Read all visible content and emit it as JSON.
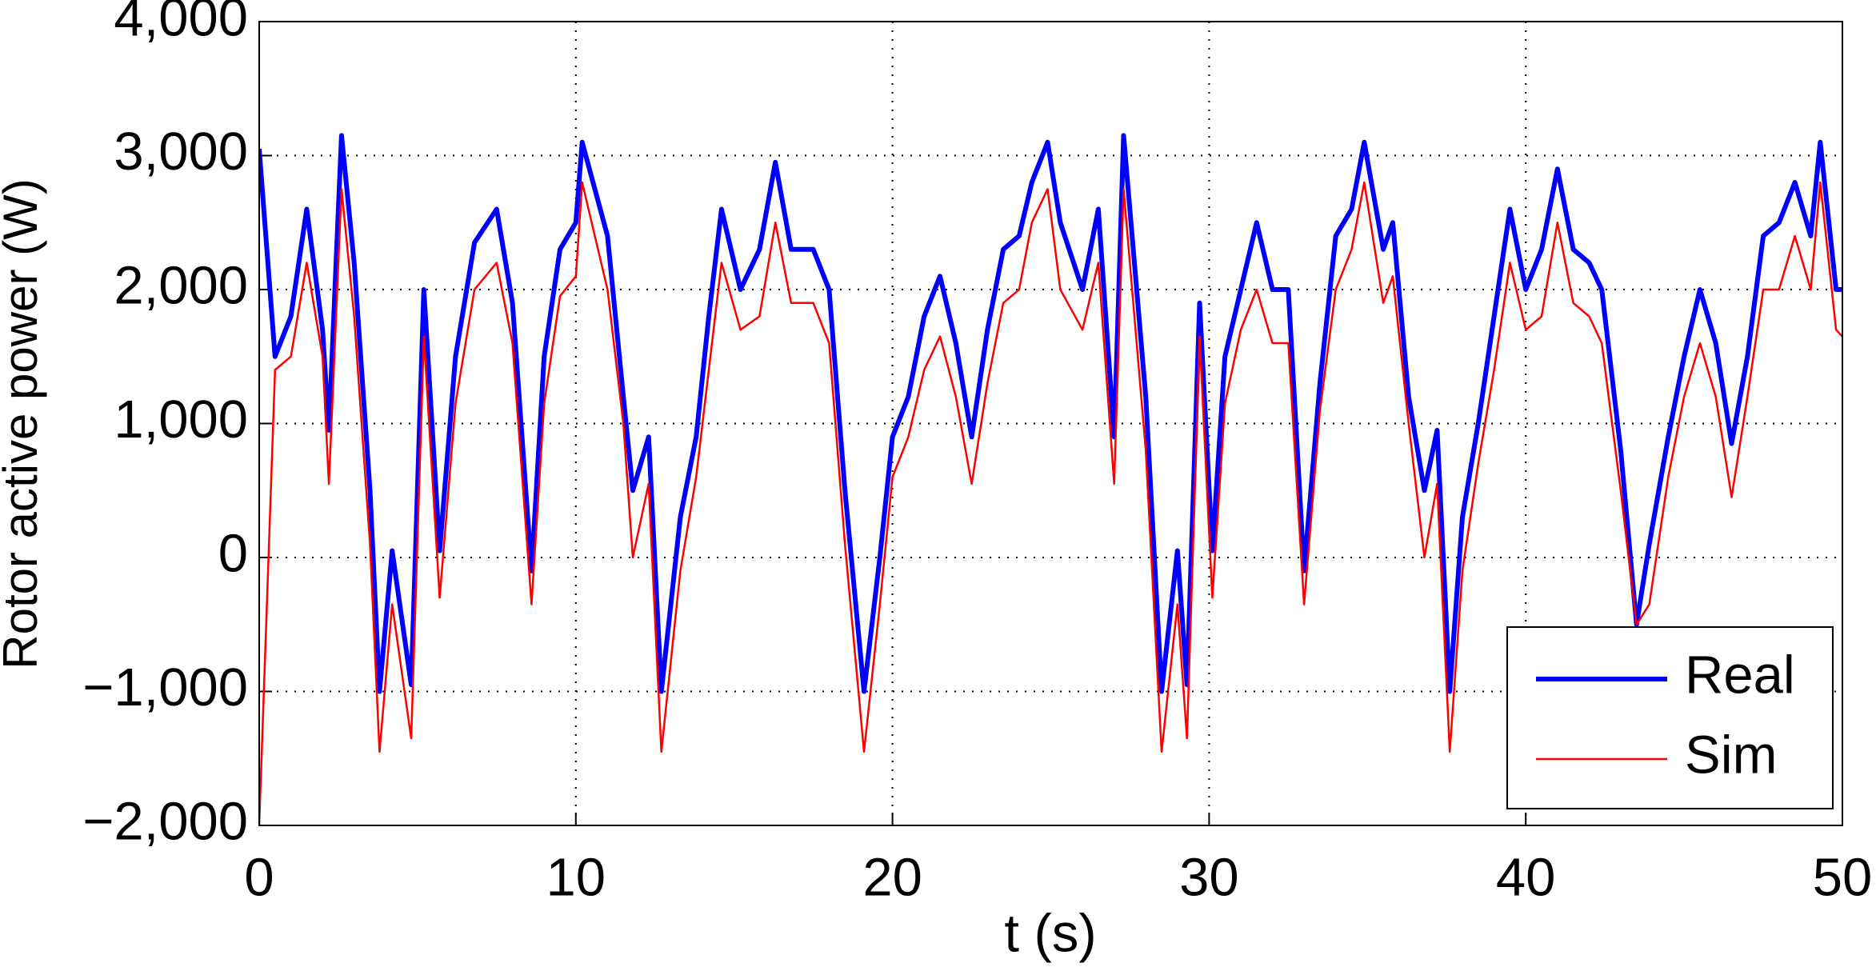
{
  "chart_data": {
    "type": "line",
    "x_label": "t (s)",
    "y_label": "Rotor active power (W)",
    "x": [
      0,
      0.5,
      1,
      1.5,
      2,
      2.2,
      2.6,
      3,
      3.5,
      3.8,
      4.2,
      4.8,
      5.2,
      5.7,
      6.2,
      6.8,
      7.5,
      8,
      8.6,
      9,
      9.5,
      10,
      10.2,
      11,
      11.5,
      11.8,
      12.3,
      12.7,
      13.3,
      13.8,
      14.2,
      14.6,
      15.2,
      15.8,
      16.3,
      16.8,
      17.5,
      18,
      18.5,
      19.1,
      19.6,
      20,
      20.5,
      21,
      21.5,
      22,
      22.5,
      23,
      23.5,
      24,
      24.4,
      24.9,
      25.3,
      26,
      26.5,
      27,
      27.3,
      28,
      28.5,
      29,
      29.3,
      29.7,
      30.1,
      30.5,
      31,
      31.5,
      32,
      32.5,
      33,
      33.5,
      34,
      34.5,
      34.9,
      35.5,
      35.8,
      36.3,
      36.8,
      37.2,
      37.6,
      38,
      38.5,
      39,
      39.5,
      40,
      40.5,
      41,
      41.5,
      42,
      42.4,
      43,
      43.5,
      43.9,
      44.5,
      45,
      45.5,
      46,
      46.5,
      47,
      47.5,
      48,
      48.5,
      49,
      49.3,
      49.8,
      50
    ],
    "series": [
      {
        "name": "Real",
        "color": "#0000ff",
        "values": [
          3050,
          1500,
          1800,
          2600,
          1700,
          950,
          3150,
          2200,
          500,
          -1000,
          50,
          -950,
          2000,
          50,
          1500,
          2350,
          2600,
          1900,
          -100,
          1500,
          2300,
          2500,
          3100,
          2400,
          1200,
          500,
          900,
          -1000,
          300,
          900,
          1800,
          2600,
          2000,
          2300,
          2950,
          2300,
          2300,
          2000,
          500,
          -1000,
          0,
          900,
          1200,
          1800,
          2100,
          1600,
          900,
          1700,
          2300,
          2400,
          2800,
          3100,
          2500,
          2000,
          2600,
          900,
          3150,
          1200,
          -1000,
          50,
          -950,
          1900,
          50,
          1500,
          2000,
          2500,
          2000,
          2000,
          -100,
          1300,
          2400,
          2600,
          3100,
          2300,
          2500,
          1200,
          500,
          950,
          -1000,
          300,
          1000,
          1800,
          2600,
          2000,
          2300,
          2900,
          2300,
          2200,
          2000,
          800,
          -500,
          100,
          900,
          1500,
          2000,
          1600,
          850,
          1500,
          2400,
          2500,
          2800,
          2400,
          3100,
          2000,
          2000
        ]
      },
      {
        "name": "Sim",
        "color": "#ff0000",
        "values": [
          -2000,
          1400,
          1500,
          2200,
          1500,
          550,
          2750,
          1800,
          100,
          -1450,
          -350,
          -1350,
          1650,
          -300,
          1150,
          2000,
          2200,
          1600,
          -350,
          1150,
          1950,
          2100,
          2800,
          2000,
          1000,
          0,
          550,
          -1450,
          -100,
          600,
          1400,
          2200,
          1700,
          1800,
          2500,
          1900,
          1900,
          1600,
          100,
          -1450,
          -350,
          600,
          900,
          1400,
          1650,
          1200,
          550,
          1300,
          1900,
          2000,
          2500,
          2750,
          2000,
          1700,
          2200,
          550,
          2750,
          800,
          -1450,
          -350,
          -1350,
          1650,
          -300,
          1150,
          1700,
          2000,
          1600,
          1600,
          -350,
          1100,
          2000,
          2300,
          2800,
          1900,
          2100,
          1000,
          0,
          550,
          -1450,
          -100,
          700,
          1400,
          2200,
          1700,
          1800,
          2500,
          1900,
          1800,
          1600,
          500,
          -500,
          -350,
          600,
          1200,
          1600,
          1200,
          450,
          1200,
          2000,
          2000,
          2400,
          2000,
          2800,
          1700,
          1650
        ]
      }
    ],
    "xlim": [
      0,
      50
    ],
    "xticks": [
      0,
      10,
      20,
      30,
      40,
      50
    ],
    "ylim": [
      -2000,
      4000
    ],
    "yticks": [
      {
        "value": -2000,
        "label": "−2,000"
      },
      {
        "value": -1000,
        "label": "−1,000"
      },
      0,
      {
        "value": 1000,
        "label": "1,000"
      },
      {
        "value": 2000,
        "label": "2,000"
      },
      {
        "value": 3000,
        "label": "3,000"
      },
      {
        "value": 4000,
        "label": "4,000"
      }
    ],
    "grid": true,
    "legend": "lower right"
  }
}
